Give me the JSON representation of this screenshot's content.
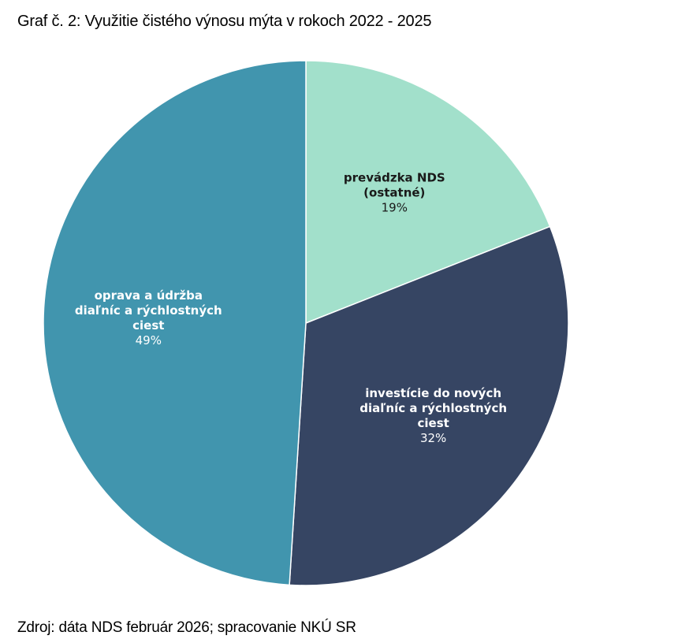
{
  "title": "Graf č. 2: Využitie čistého výnosu mýta v rokoch 2022 - 2025",
  "source": "Zdroj: dáta NDS február 2026; spracovanie NKÚ SR",
  "chart_data": {
    "type": "pie",
    "slices": [
      {
        "label_lines": [
          "prevádzka NDS",
          "(ostatné)"
        ],
        "value": 19,
        "value_label": "19%",
        "color": "#a2e0cb",
        "text_color": "#1a1a1a"
      },
      {
        "label_lines": [
          "investície do nových",
          "diaľníc a rýchlostných",
          "ciest"
        ],
        "value": 32,
        "value_label": "32%",
        "color": "#364563",
        "text_color": "#ffffff"
      },
      {
        "label_lines": [
          "oprava a údržba",
          "diaľníc a rýchlostných",
          "ciest"
        ],
        "value": 49,
        "value_label": "49%",
        "color": "#4195ae",
        "text_color": "#ffffff"
      }
    ],
    "legend": "none"
  }
}
